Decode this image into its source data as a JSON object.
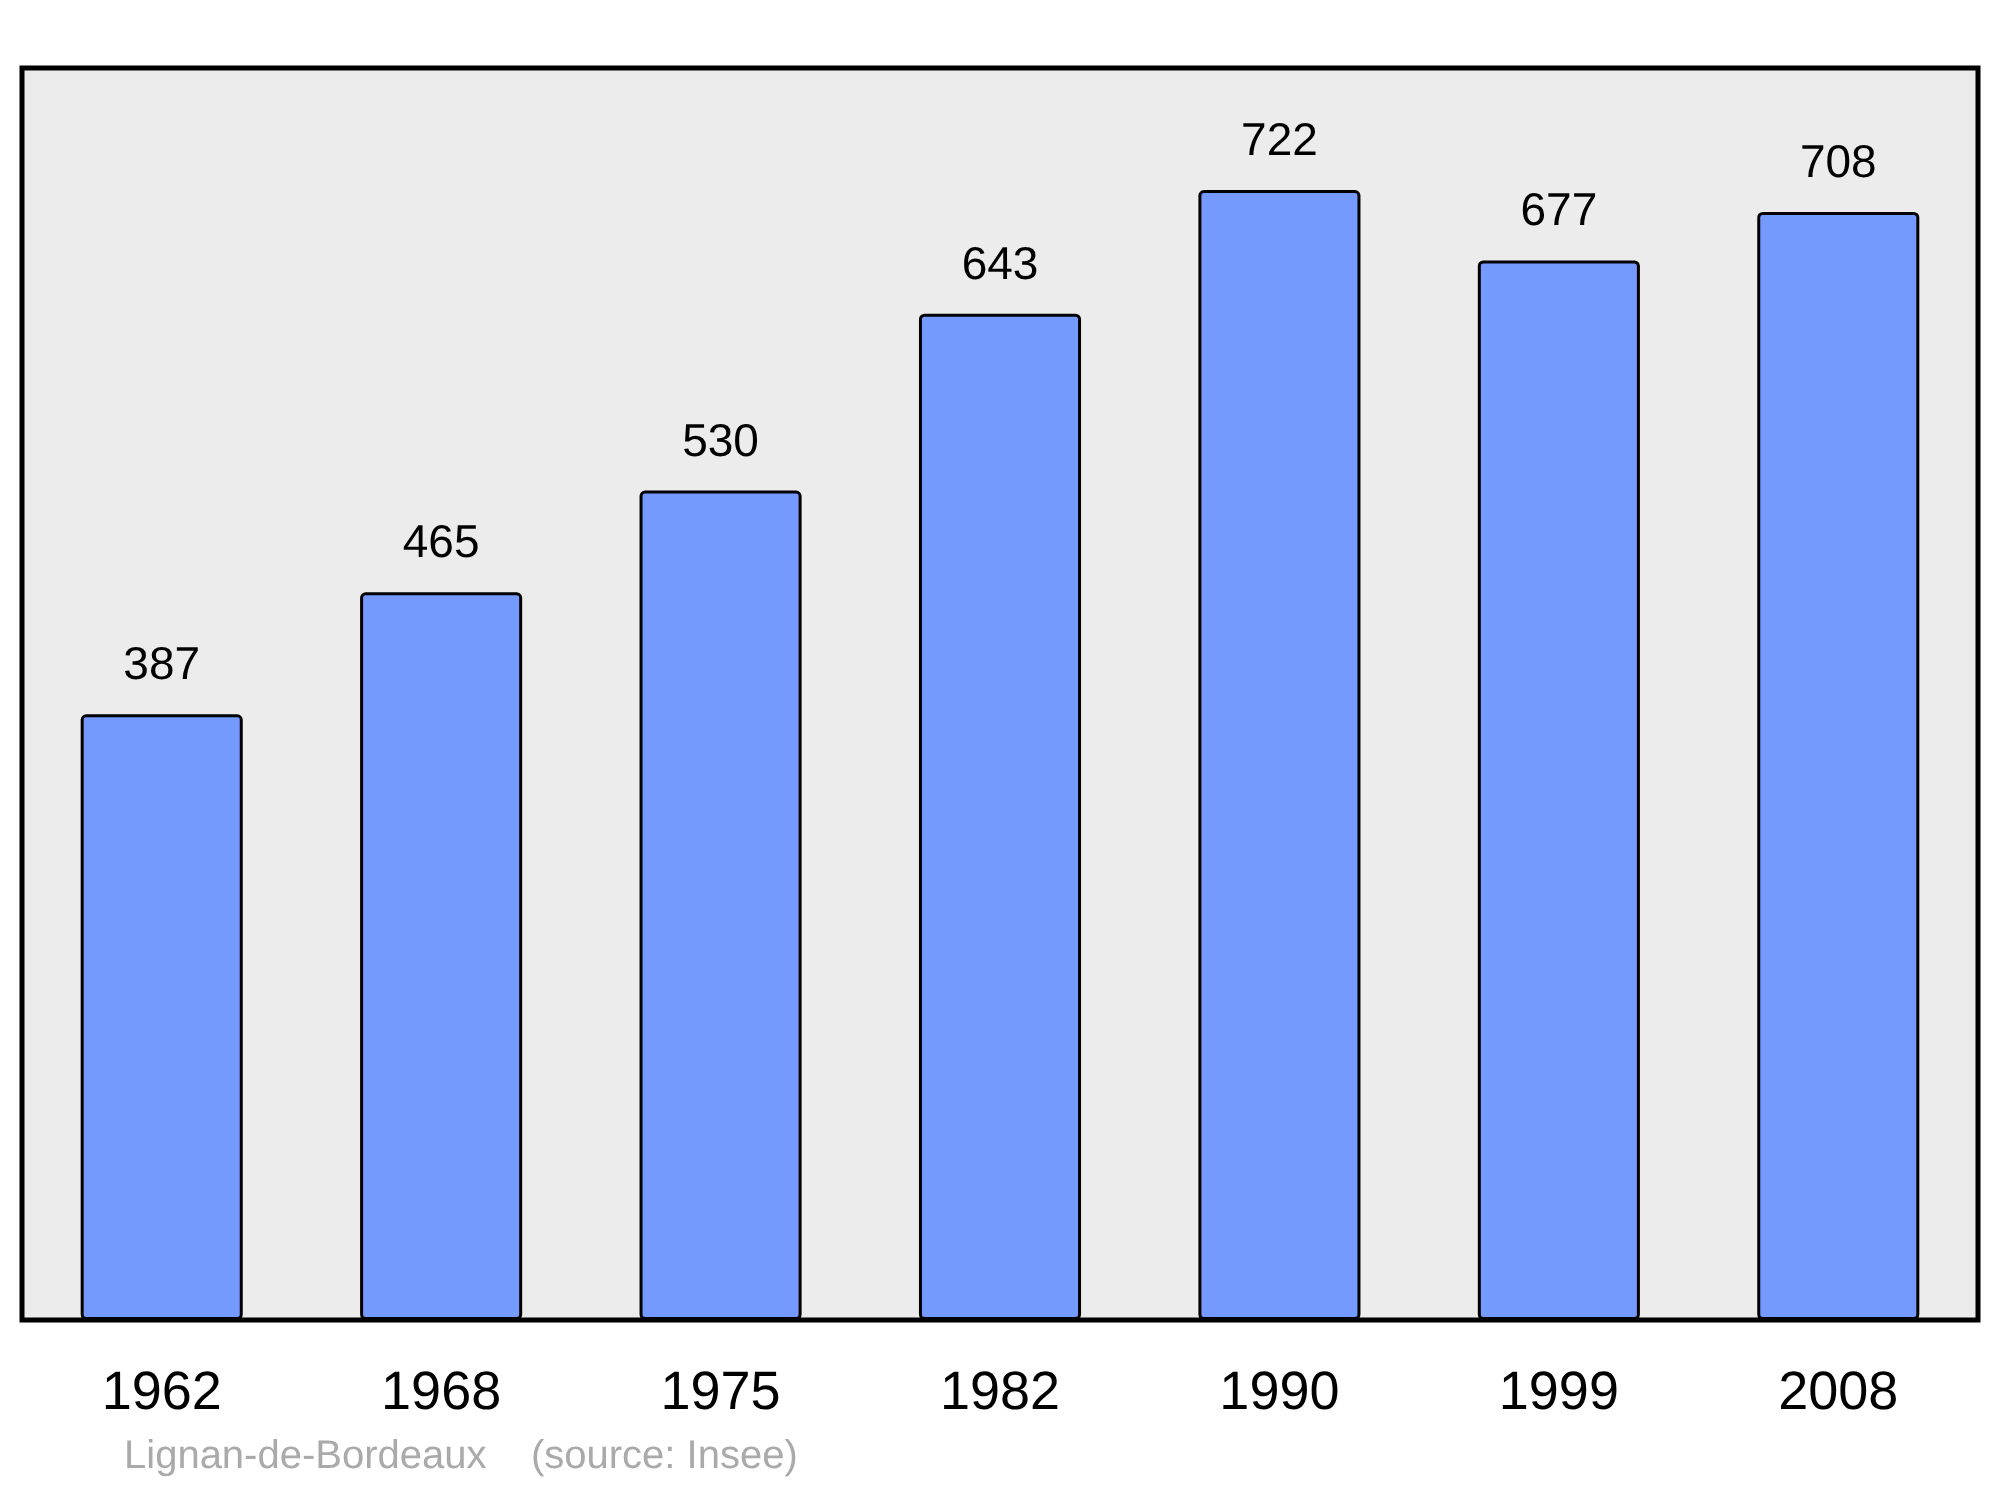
{
  "chart_data": {
    "type": "bar",
    "categories": [
      "1962",
      "1968",
      "1975",
      "1982",
      "1990",
      "1999",
      "2008"
    ],
    "values": [
      387,
      465,
      530,
      643,
      722,
      677,
      708
    ],
    "color": "#7499ff",
    "data_labels": true,
    "annotations": [
      "Lignan-de-Bordeaux    (source: Insee)"
    ]
  }
}
